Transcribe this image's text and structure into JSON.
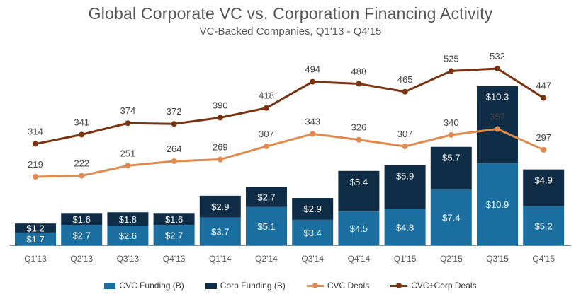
{
  "chart_data": {
    "type": "bar",
    "title": "Global Corporate VC vs. Corporation Financing Activity",
    "subtitle": "VC-Backed Companies, Q1'13 - Q4'15",
    "categories": [
      "Q1'13",
      "Q2'13",
      "Q3'13",
      "Q4'13",
      "Q1'14",
      "Q2'14",
      "Q3'14",
      "Q4'14",
      "Q1'15",
      "Q2'15",
      "Q3'15",
      "Q4'15"
    ],
    "stacked_series": [
      {
        "name": "CVC Funding (B)",
        "color": "#1a6fa0",
        "values": [
          1.7,
          2.7,
          2.6,
          2.7,
          3.7,
          5.1,
          3.4,
          4.5,
          4.8,
          7.4,
          10.9,
          5.2
        ],
        "labels": [
          "$1.7",
          "$2.7",
          "$2.6",
          "$2.7",
          "$3.7",
          "$5.1",
          "$3.4",
          "$4.5",
          "$4.8",
          "$7.4",
          "$10.9",
          "$5.2"
        ]
      },
      {
        "name": "Corp Funding (B)",
        "color": "#0f2d46",
        "values": [
          1.2,
          1.6,
          1.8,
          1.6,
          2.9,
          2.7,
          2.9,
          5.4,
          5.9,
          5.7,
          10.3,
          4.9
        ],
        "labels": [
          "$1.2",
          "$1.6",
          "$1.8",
          "$1.6",
          "$2.9",
          "$2.7",
          "$2.9",
          "$5.4",
          "$5.9",
          "$5.7",
          "$10.3",
          "$4.9"
        ]
      }
    ],
    "line_series": [
      {
        "name": "CVC Deals",
        "color": "#e08a4f",
        "values": [
          219,
          222,
          251,
          264,
          269,
          307,
          343,
          326,
          307,
          340,
          357,
          297
        ]
      },
      {
        "name": "CVC+Corp Deals",
        "color": "#7a3210",
        "values": [
          314,
          341,
          374,
          372,
          390,
          418,
          494,
          488,
          465,
          525,
          532,
          447
        ]
      }
    ],
    "grid": false,
    "legend_position": "bottom"
  }
}
